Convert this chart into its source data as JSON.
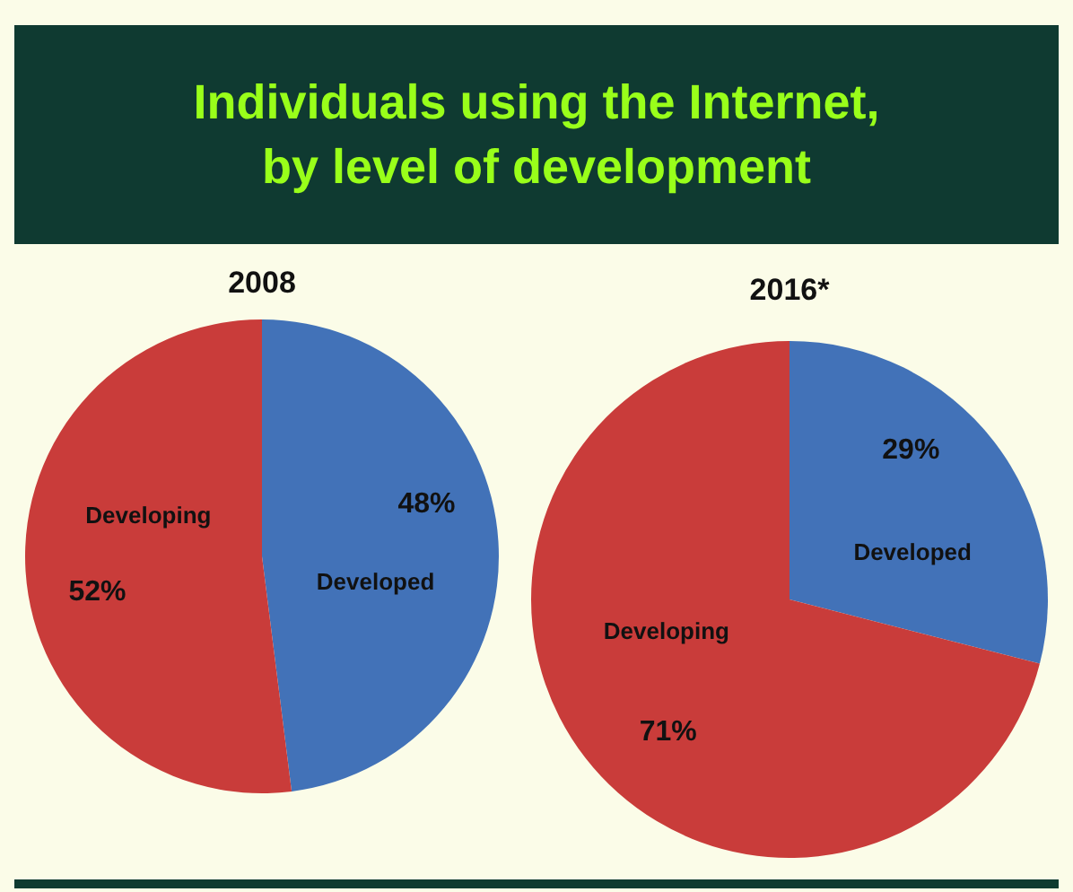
{
  "chart_data": [
    {
      "type": "other",
      "title": "Individuals using the Internet, by level of development"
    },
    {
      "type": "pie",
      "title": "2008",
      "categories": [
        "Developed",
        "Developing"
      ],
      "values": [
        48,
        52
      ],
      "colors": [
        "#4272b8",
        "#c93c3a"
      ],
      "value_labels": [
        "48%",
        "52%"
      ]
    },
    {
      "type": "pie",
      "title": "2016*",
      "categories": [
        "Developed",
        "Developing"
      ],
      "values": [
        29,
        71
      ],
      "colors": [
        "#4272b8",
        "#c93c3a"
      ],
      "value_labels": [
        "29%",
        "71%"
      ]
    }
  ]
}
